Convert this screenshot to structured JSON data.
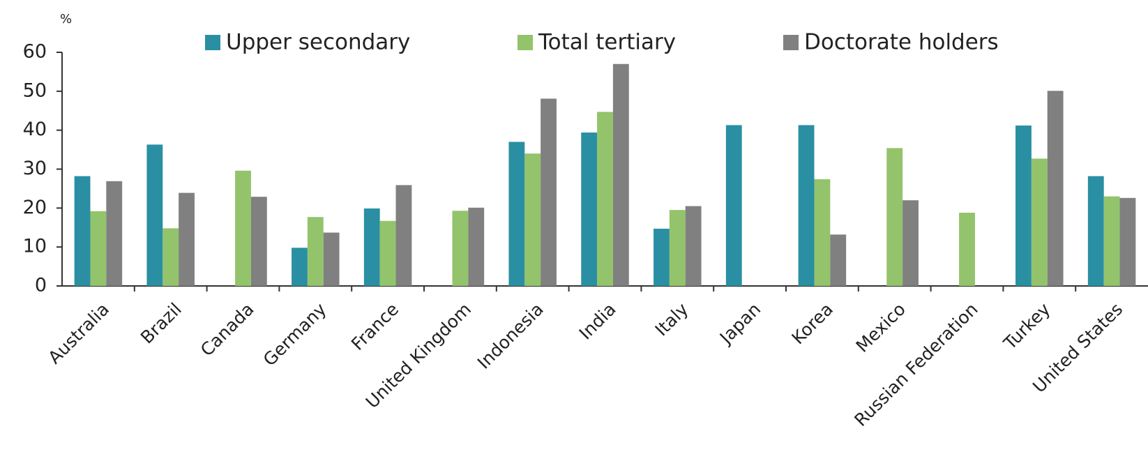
{
  "chart_data": {
    "type": "bar",
    "y_unit": "%",
    "categories": [
      "Australia",
      "Brazil",
      "Canada",
      "Germany",
      "France",
      "United Kingdom",
      "Indonesia",
      "India",
      "Italy",
      "Japan",
      "Korea",
      "Mexico",
      "Russian Federation",
      "Turkey",
      "United States"
    ],
    "series": [
      {
        "name": "Upper secondary",
        "color": "#2a8fa3",
        "values": [
          28.2,
          36.3,
          null,
          9.8,
          19.9,
          null,
          37,
          39.4,
          14.7,
          41.3,
          41.3,
          null,
          null,
          41.2,
          28.2
        ]
      },
      {
        "name": "Total tertiary",
        "color": "#93c36b",
        "values": [
          19.2,
          14.8,
          29.6,
          17.7,
          16.7,
          19.3,
          34,
          44.7,
          19.5,
          null,
          27.4,
          35.4,
          18.8,
          32.7,
          23
        ]
      },
      {
        "name": "Doctorate holders",
        "color": "#808080",
        "values": [
          26.9,
          23.9,
          22.9,
          13.7,
          25.9,
          20.1,
          48.1,
          57,
          20.5,
          null,
          13.2,
          22,
          null,
          50.1,
          22.6
        ]
      }
    ],
    "ylim": [
      0,
      60
    ],
    "yticks": [
      0,
      10,
      20,
      30,
      40,
      50,
      60
    ],
    "grid": false
  }
}
